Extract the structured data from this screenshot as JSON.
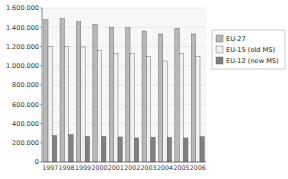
{
  "chart_data": {
    "type": "bar",
    "categories": [
      "1997",
      "1998",
      "1999",
      "2000",
      "2001",
      "2002",
      "2003",
      "2004",
      "2005",
      "2006"
    ],
    "series": [
      {
        "name": "EU-27",
        "color": "#b8b8b8",
        "values": [
          1480000,
          1490000,
          1460000,
          1430000,
          1400000,
          1395000,
          1360000,
          1330000,
          1390000,
          1330000
        ]
      },
      {
        "name": "EU-15 (old MS)",
        "color": "#f0f0f0",
        "values": [
          1200000,
          1200000,
          1195000,
          1160000,
          1130000,
          1130000,
          1095000,
          1050000,
          1130000,
          1095000
        ]
      },
      {
        "name": "EU-12 (new MS)",
        "color": "#808080",
        "values": [
          275000,
          285000,
          265000,
          265000,
          260000,
          250000,
          258000,
          255000,
          250000,
          262000
        ]
      }
    ],
    "ylim": [
      0,
      1600000
    ],
    "yticks": [
      0,
      {
        "value": 200000,
        "label": "200.000"
      },
      {
        "value": 400000,
        "label": "400.000"
      },
      {
        "value": 600000,
        "label": "600.000"
      },
      {
        "value": 800000,
        "label": "800.000"
      },
      {
        "value": 1000000,
        "label": "1.000.000"
      },
      {
        "value": 1200000,
        "label": "1.200.000"
      },
      {
        "value": 1400000,
        "label": "1.400.000"
      },
      {
        "value": 1600000,
        "label": "1.600.000"
      }
    ],
    "grid": true,
    "legend": "right"
  }
}
